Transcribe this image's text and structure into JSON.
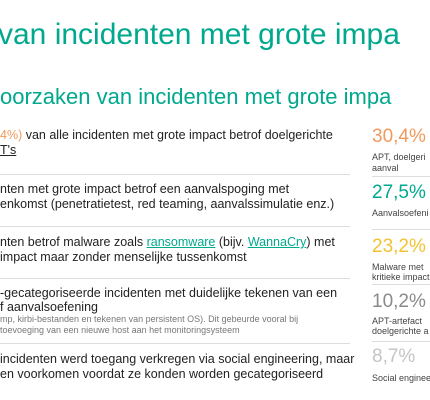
{
  "header": {
    "title": "van incidenten met grote impa",
    "subtitle": "oorzaken van incidenten met grote impa"
  },
  "rows": [
    {
      "line1": [
        "4%)",
        " van alle incidenten met grote impact betrof doelgerichte"
      ],
      "line2": [
        "T's"
      ],
      "stat": "30,4%",
      "caption": [
        "APT, doelgeri",
        "aanval"
      ]
    },
    {
      "line1": [
        "nten met grote impact betrof een aanvalspoging met"
      ],
      "line2": [
        "enkomst (penetratietest, red teaming, aanvalssimulatie enz.)"
      ],
      "stat": "27,5%",
      "caption": [
        "Aanvalsoefeni"
      ]
    },
    {
      "line1": [
        "nten betrof malware zoals ",
        "ransomware",
        " (bijv. ",
        "WannaCry",
        ") met"
      ],
      "line2": [
        "impact maar zonder menselijke tussenkomst"
      ],
      "stat": "23,2%",
      "caption": [
        "Malware met",
        "kritieke impact"
      ]
    },
    {
      "line1": [
        "-gecategoriseerde incidenten met duidelijke tekenen van een"
      ],
      "line2": [
        "f aanvalsoefening"
      ],
      "note": [
        "mp, kirbi-bestanden en tekenen van persistent OS). Dit gebeurde vooral bij",
        "toevoeging van een nieuwe host aan het monitoringsysteem"
      ],
      "stat": "10,2%",
      "caption": [
        "APT-artefact",
        "doelgerichte a"
      ]
    },
    {
      "line1": [
        "incidenten werd toegang verkregen via social engineering, maar"
      ],
      "line2": [
        "en voorkomen voordat ze konden worden gecategoriseerd"
      ],
      "stat": "8,7%",
      "caption": [
        "Social enginee"
      ]
    }
  ]
}
